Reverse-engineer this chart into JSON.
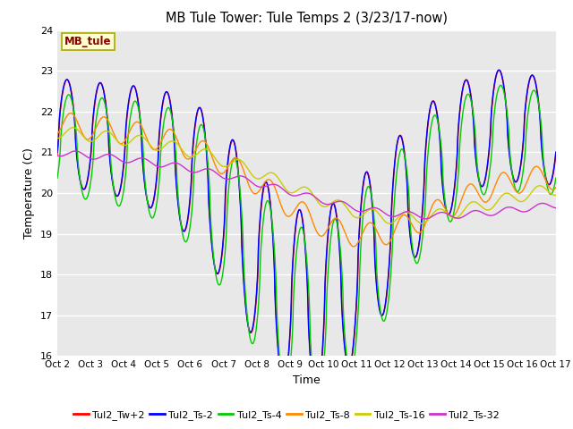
{
  "title": "MB Tule Tower: Tule Temps 2 (3/23/17-now)",
  "xlabel": "Time",
  "ylabel": "Temperature (C)",
  "ylim": [
    16.0,
    24.0
  ],
  "xlim": [
    0,
    15
  ],
  "yticks": [
    16.0,
    17.0,
    18.0,
    19.0,
    20.0,
    21.0,
    22.0,
    23.0,
    24.0
  ],
  "xtick_labels": [
    "Oct 2",
    "Oct 3",
    "Oct 4",
    "Oct 5",
    "Oct 6",
    "Oct 7",
    "Oct 8",
    "Oct 9",
    "Oct 10",
    "Oct 11",
    "Oct 12",
    "Oct 13",
    "Oct 14",
    "Oct 15",
    "Oct 16",
    "Oct 17"
  ],
  "background_color": "#e8e8e8",
  "figure_bg": "#ffffff",
  "legend_labels": [
    "Tul2_Tw+2",
    "Tul2_Ts-2",
    "Tul2_Ts-4",
    "Tul2_Ts-8",
    "Tul2_Ts-16",
    "Tul2_Ts-32"
  ],
  "line_colors": [
    "#ff0000",
    "#0000ff",
    "#00cc00",
    "#ff8800",
    "#cccc00",
    "#cc33cc"
  ],
  "annotation_text": "MB_tule",
  "annotation_bg": "#ffffcc",
  "annotation_border": "#aaa800",
  "annotation_text_color": "#880000",
  "figsize": [
    6.4,
    4.8
  ],
  "dpi": 100
}
